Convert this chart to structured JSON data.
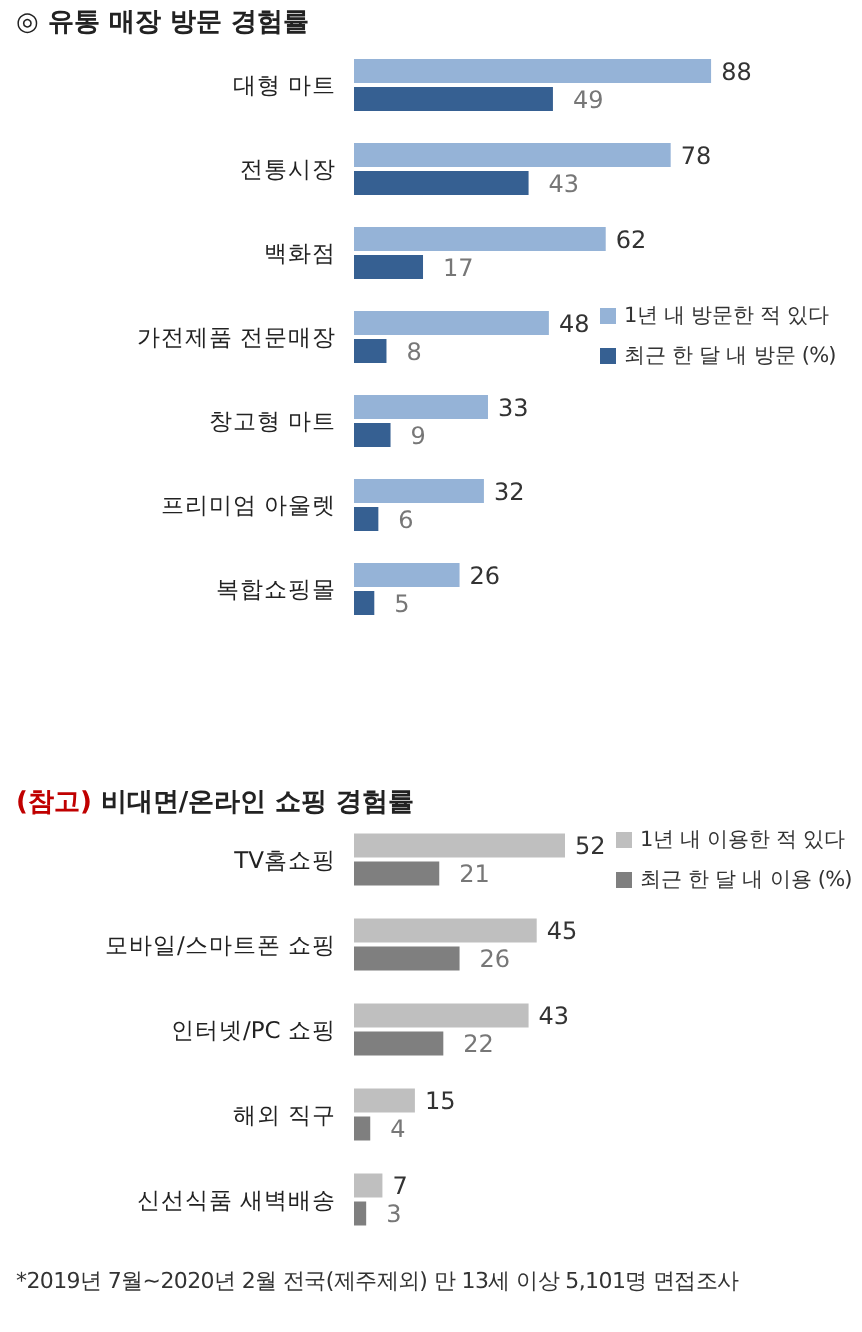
{
  "chart_data": [
    {
      "type": "bar",
      "orientation": "horizontal",
      "title": "◎ 유통 매장 방문 경험률",
      "categories": [
        "대형 마트",
        "전통시장",
        "백화점",
        "가전제품 전문매장",
        "창고형 마트",
        "프리미엄 아울렛",
        "복합쇼핑몰"
      ],
      "series": [
        {
          "name": "1년 내 방문한 적 있다",
          "color": "#95b3d7",
          "values": [
            88,
            78,
            62,
            48,
            33,
            32,
            26
          ]
        },
        {
          "name": "최근 한 달 내 방문 (%)",
          "color": "#366092",
          "values": [
            49,
            43,
            17,
            8,
            9,
            6,
            5
          ]
        }
      ],
      "data_labels": true,
      "legend": "right",
      "tick_labels": "y"
    },
    {
      "type": "bar",
      "orientation": "horizontal",
      "title": "(참고) 비대면/온라인 쇼핑 경험률",
      "categories": [
        "TV홈쇼핑",
        "모바일/스마트폰 쇼핑",
        "인터넷/PC 쇼핑",
        "해외 직구",
        "신선식품 새벽배송"
      ],
      "series": [
        {
          "name": "1년 내 이용한 적 있다",
          "color": "#bfbfbf",
          "values": [
            52,
            45,
            43,
            15,
            7
          ]
        },
        {
          "name": "최근 한 달 내 이용 (%)",
          "color": "#7f7f7f",
          "values": [
            21,
            26,
            22,
            4,
            3
          ]
        }
      ],
      "data_labels": true,
      "legend": "top right",
      "tick_labels": "y",
      "annotations": [
        "*2019년 7월~2020년 2월 전국(제주제외) 만 13세 이상 5,101명 면접조사"
      ]
    }
  ]
}
